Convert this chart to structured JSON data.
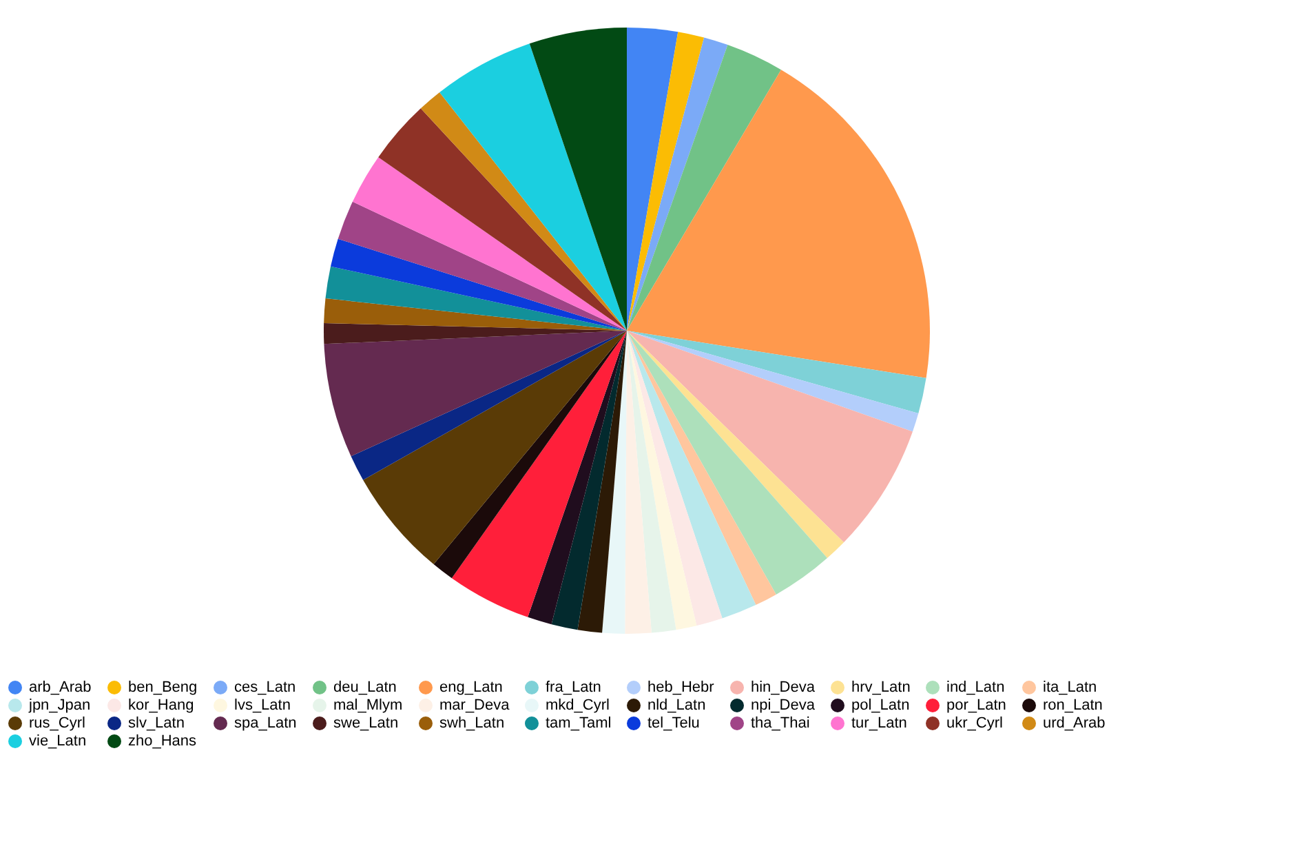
{
  "chart_data": {
    "type": "pie",
    "legend": "bottom",
    "categories": [
      "arb_Arab",
      "ben_Beng",
      "ces_Latn",
      "deu_Latn",
      "eng_Latn",
      "fra_Latn",
      "heb_Hebr",
      "hin_Deva",
      "hrv_Latn",
      "ind_Latn",
      "ita_Latn",
      "jpn_Jpan",
      "kor_Hang",
      "lvs_Latn",
      "mal_Mlym",
      "mar_Deva",
      "mkd_Cyrl",
      "nld_Latn",
      "npi_Deva",
      "pol_Latn",
      "por_Latn",
      "ron_Latn",
      "rus_Cyrl",
      "slv_Latn",
      "spa_Latn",
      "swe_Latn",
      "swh_Latn",
      "tam_Taml",
      "tel_Telu",
      "tha_Thai",
      "tur_Latn",
      "ukr_Cyrl",
      "urd_Arab",
      "vie_Latn",
      "zho_Hans"
    ],
    "values": [
      2.7,
      1.4,
      1.3,
      3.1,
      19.0,
      1.9,
      1.0,
      6.9,
      1.2,
      3.3,
      1.2,
      1.9,
      1.4,
      1.1,
      1.3,
      1.4,
      1.2,
      1.3,
      1.4,
      1.3,
      4.5,
      1.2,
      5.8,
      1.4,
      6.1,
      1.1,
      1.3,
      1.7,
      1.5,
      2.1,
      2.7,
      3.4,
      1.3,
      5.4,
      5.2
    ],
    "colors": [
      "#4285f4",
      "#fbbc04",
      "#7baaf7",
      "#71c287",
      "#ff994d",
      "#7ed1d7",
      "#b3cefb",
      "#f7b4ae",
      "#fde293",
      "#ade0bb",
      "#ffc69e",
      "#b8e8ec",
      "#fce8e6",
      "#fef7e0",
      "#e6f4ea",
      "#fdf0e6",
      "#e8f7f8",
      "#2c1a06",
      "#032a2e",
      "#200d1e",
      "#ff1f3a",
      "#1b0a0a",
      "#5a3b06",
      "#0a2785",
      "#642a50",
      "#4b1c1c",
      "#9a5e0a",
      "#129099",
      "#0b3bdc",
      "#a04487",
      "#ff74d0",
      "#8f3226",
      "#d18a16",
      "#1bcfe0",
      "#024a14"
    ]
  }
}
